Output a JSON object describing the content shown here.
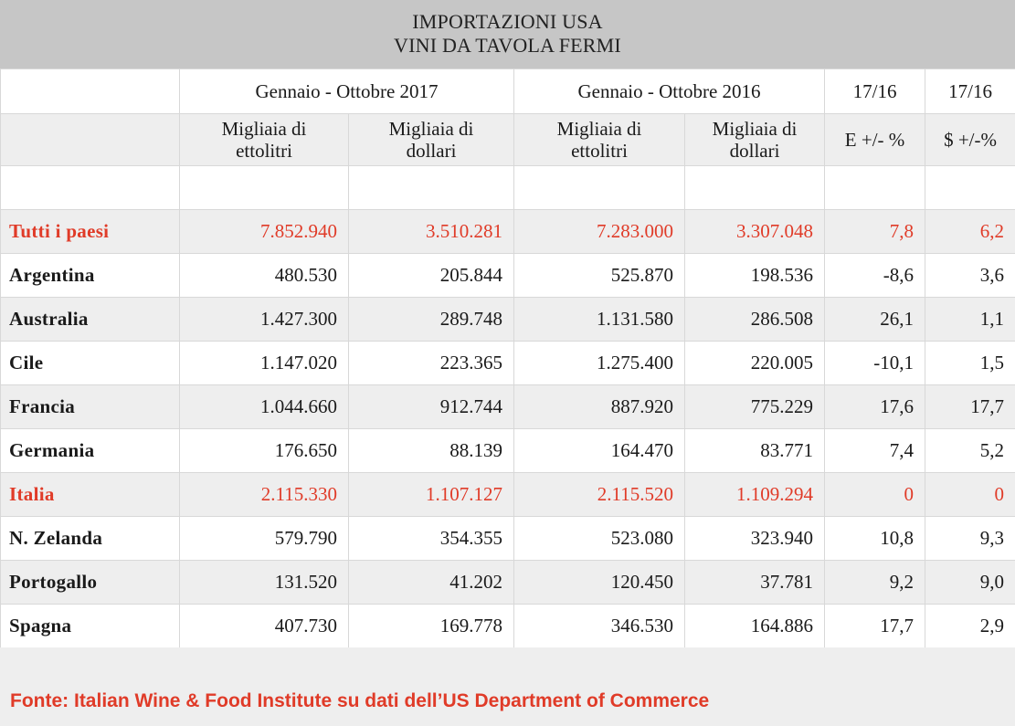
{
  "title": {
    "line1": "IMPORTAZIONI USA",
    "line2": "VINI DA TAVOLA FERMI"
  },
  "header": {
    "period_2017": "Gennaio - Ottobre 2017",
    "period_2016": "Gennaio - Ottobre 2016",
    "ratio_e": "17/16",
    "ratio_d": "17/16",
    "hl_1": "Migliaia di",
    "hl_2": "ettolitri",
    "usd_1": "Migliaia di",
    "usd_2": "dollari",
    "e_pct": "E +/- %",
    "d_pct": "$ +/-%"
  },
  "rows": [
    {
      "country": "Tutti i paesi",
      "hl_2017": "7.852.940",
      "usd_2017": "3.510.281",
      "hl_2016": "7.283.000",
      "usd_2016": "3.307.048",
      "e_pct": "7,8",
      "d_pct": "6,2"
    },
    {
      "country": "Argentina",
      "hl_2017": "480.530",
      "usd_2017": "205.844",
      "hl_2016": "525.870",
      "usd_2016": "198.536",
      "e_pct": "-8,6",
      "d_pct": "3,6"
    },
    {
      "country": "Australia",
      "hl_2017": "1.427.300",
      "usd_2017": "289.748",
      "hl_2016": "1.131.580",
      "usd_2016": "286.508",
      "e_pct": "26,1",
      "d_pct": "1,1"
    },
    {
      "country": "Cile",
      "hl_2017": "1.147.020",
      "usd_2017": "223.365",
      "hl_2016": "1.275.400",
      "usd_2016": "220.005",
      "e_pct": "-10,1",
      "d_pct": "1,5"
    },
    {
      "country": "Francia",
      "hl_2017": "1.044.660",
      "usd_2017": "912.744",
      "hl_2016": "887.920",
      "usd_2016": "775.229",
      "e_pct": "17,6",
      "d_pct": "17,7"
    },
    {
      "country": "Germania",
      "hl_2017": "176.650",
      "usd_2017": "88.139",
      "hl_2016": "164.470",
      "usd_2016": "83.771",
      "e_pct": "7,4",
      "d_pct": "5,2"
    },
    {
      "country": "Italia",
      "hl_2017": "2.115.330",
      "usd_2017": "1.107.127",
      "hl_2016": "2.115.520",
      "usd_2016": "1.109.294",
      "e_pct": "0",
      "d_pct": "0"
    },
    {
      "country": "N. Zelanda",
      "hl_2017": "579.790",
      "usd_2017": "354.355",
      "hl_2016": "523.080",
      "usd_2016": "323.940",
      "e_pct": "10,8",
      "d_pct": "9,3"
    },
    {
      "country": "Portogallo",
      "hl_2017": "131.520",
      "usd_2017": "41.202",
      "hl_2016": "120.450",
      "usd_2016": "37.781",
      "e_pct": "9,2",
      "d_pct": "9,0"
    },
    {
      "country": "Spagna",
      "hl_2017": "407.730",
      "usd_2017": "169.778",
      "hl_2016": "346.530",
      "usd_2016": "164.886",
      "e_pct": "17,7",
      "d_pct": "2,9"
    }
  ],
  "source": "Fonte: Italian Wine & Food Institute su dati dell’US Department of Commerce",
  "colors": {
    "highlight": "#e03b28",
    "title_bg": "#c6c6c6",
    "stripe_bg": "#eeeeee"
  }
}
